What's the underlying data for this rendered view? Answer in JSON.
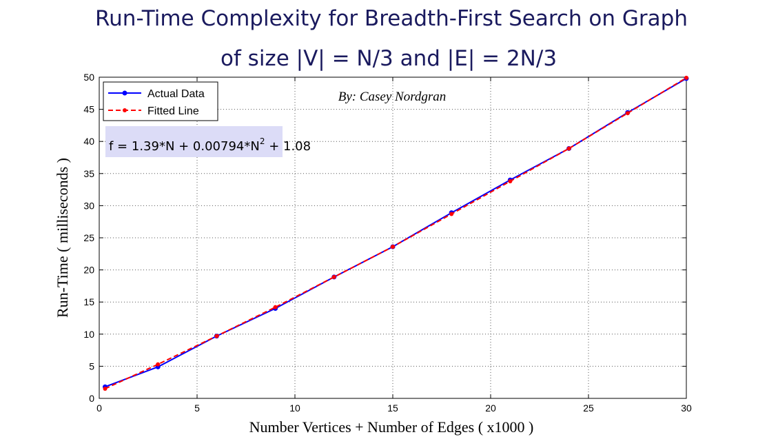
{
  "chart_data": {
    "type": "line",
    "title_line1": "Run-Time Complexity for Breadth-First Search on Graph",
    "title_line2": "of size |V| = N/3 and |E| = 2N/3",
    "xlabel": "Number Vertices + Number of Edges ( x1000 )",
    "ylabel": "Run-Time ( milliseconds )",
    "xlim": [
      0,
      30
    ],
    "ylim": [
      0,
      50
    ],
    "xticks": [
      0,
      5,
      10,
      15,
      20,
      25,
      30
    ],
    "yticks": [
      0,
      5,
      10,
      15,
      20,
      25,
      30,
      35,
      40,
      45,
      50
    ],
    "grid": true,
    "legend_position": "top-left",
    "annotation": "By: Casey Nordgran",
    "formula": {
      "prefix": "f = 1.39*N + 0.00794*N",
      "superscript": "2",
      "suffix": " + 1.08"
    },
    "x": [
      0.3,
      3,
      6,
      9,
      12,
      15,
      18,
      21,
      24,
      27,
      30
    ],
    "series": [
      {
        "name": "Actual Data",
        "color": "#0000ff",
        "style": "solid",
        "values": [
          1.8,
          4.9,
          9.7,
          14.0,
          18.9,
          23.6,
          28.9,
          34.0,
          38.9,
          44.5,
          49.8
        ]
      },
      {
        "name": "Fitted Line",
        "color": "#ff0000",
        "style": "dashed",
        "values": [
          1.5,
          5.3,
          9.7,
          14.2,
          18.9,
          23.6,
          28.7,
          33.8,
          38.9,
          44.4,
          49.9
        ]
      }
    ]
  }
}
